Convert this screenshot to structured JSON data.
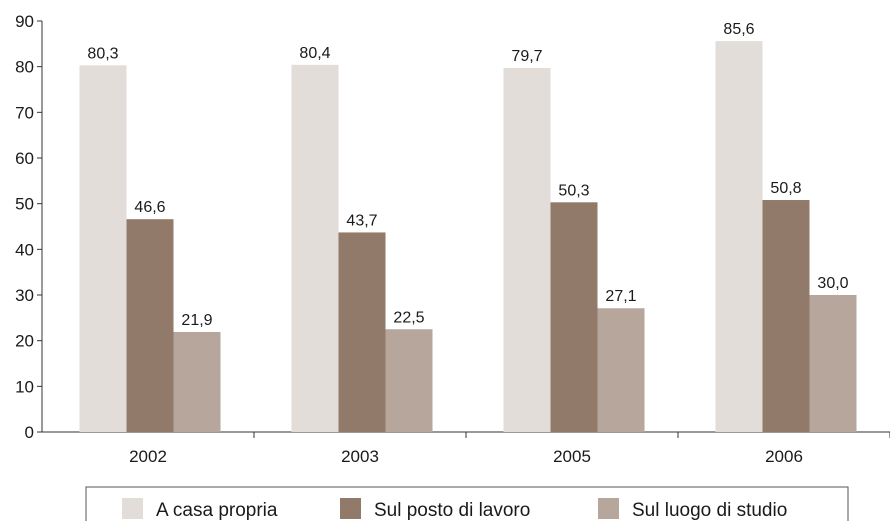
{
  "chart_data": {
    "type": "bar",
    "categories": [
      "2002",
      "2003",
      "2005",
      "2006"
    ],
    "series": [
      {
        "name": "A casa propria",
        "values": [
          80.3,
          80.4,
          79.7,
          85.6
        ],
        "labels": [
          "80,3",
          "80,4",
          "79,7",
          "85,6"
        ],
        "color": "#e2ddd8"
      },
      {
        "name": "Sul posto di lavoro",
        "values": [
          46.6,
          43.7,
          50.3,
          50.8
        ],
        "labels": [
          "46,6",
          "43,7",
          "50,3",
          "50,8"
        ],
        "color": "#917a69"
      },
      {
        "name": "Sul luogo di studio",
        "values": [
          21.9,
          22.5,
          27.1,
          30.0
        ],
        "labels": [
          "21,9",
          "22,5",
          "27,1",
          "30,0"
        ],
        "color": "#b6a69b"
      }
    ],
    "ylim": [
      0,
      90
    ],
    "yticks": [
      "0",
      "10",
      "20",
      "30",
      "40",
      "50",
      "60",
      "70",
      "80",
      "90"
    ],
    "grid": false,
    "legend": "bottom"
  }
}
